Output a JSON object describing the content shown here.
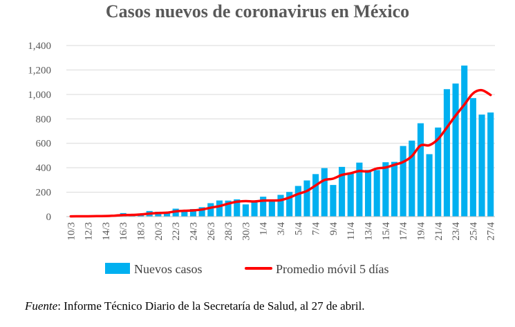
{
  "chart_data": {
    "type": "bar",
    "title": "Casos nuevos de coronavirus en México",
    "xlabel": "",
    "ylabel": "",
    "ylim": [
      0,
      1400
    ],
    "yticks": [
      0,
      200,
      400,
      600,
      800,
      1000,
      1200,
      1400
    ],
    "ytick_labels": [
      "0",
      "200",
      "400",
      "600",
      "800",
      "1,000",
      "1,200",
      "1,400"
    ],
    "grid": true,
    "legend_position": "bottom",
    "categories": [
      "10/3",
      "11/3",
      "12/3",
      "13/3",
      "14/3",
      "15/3",
      "16/3",
      "17/3",
      "18/3",
      "19/3",
      "20/3",
      "21/3",
      "22/3",
      "23/3",
      "24/3",
      "25/3",
      "26/3",
      "27/3",
      "28/3",
      "29/3",
      "30/3",
      "31/3",
      "1/4",
      "2/4",
      "3/4",
      "4/4",
      "5/4",
      "6/4",
      "7/4",
      "8/4",
      "9/4",
      "10/4",
      "11/4",
      "12/4",
      "13/4",
      "14/4",
      "15/4",
      "16/4",
      "17/4",
      "18/4",
      "19/4",
      "20/4",
      "21/4",
      "22/4",
      "23/4",
      "24/4",
      "25/4",
      "26/4",
      "27/4"
    ],
    "x_tick_labels": [
      "10/3",
      "12/3",
      "14/3",
      "16/3",
      "18/3",
      "20/3",
      "22/3",
      "24/3",
      "26/3",
      "28/3",
      "30/3",
      "1/4",
      "3/4",
      "5/4",
      "7/4",
      "9/4",
      "11/4",
      "13/4",
      "15/4",
      "17/4",
      "19/4",
      "21/4",
      "23/4",
      "25/4",
      "27/4"
    ],
    "series": [
      {
        "name": "Nuevos casos",
        "kind": "bar",
        "color": "#00B0F0",
        "values": [
          2,
          4,
          4,
          3,
          12,
          15,
          29,
          11,
          25,
          46,
          40,
          39,
          65,
          51,
          62,
          77,
          110,
          132,
          131,
          141,
          100,
          119,
          163,
          136,
          178,
          202,
          251,
          296,
          348,
          397,
          259,
          407,
          362,
          442,
          382,
          381,
          445,
          448,
          578,
          622,
          764,
          511,
          729,
          1043,
          1089,
          1236,
          970,
          835,
          852
        ]
      },
      {
        "name": "Promedio móvil 5 días",
        "kind": "line",
        "color": "#FF0000",
        "values": [
          2,
          3,
          3,
          4,
          5,
          8,
          13,
          14,
          18,
          25,
          30,
          32,
          43,
          48,
          51,
          58,
          73,
          86,
          106,
          122,
          127,
          124,
          131,
          132,
          135,
          156,
          186,
          210,
          255,
          299,
          311,
          341,
          355,
          373,
          370,
          394,
          402,
          424,
          447,
          495,
          582,
          584,
          635,
          729,
          827,
          916,
          1009,
          1035,
          995
        ]
      }
    ]
  },
  "legend": {
    "bar_label": "Nuevos casos",
    "line_label": "Promedio móvil 5 días"
  },
  "source": {
    "label": "Fuente",
    "text": ": Informe Técnico Diario de la Secretaría de Salud, al 27 de abril."
  }
}
